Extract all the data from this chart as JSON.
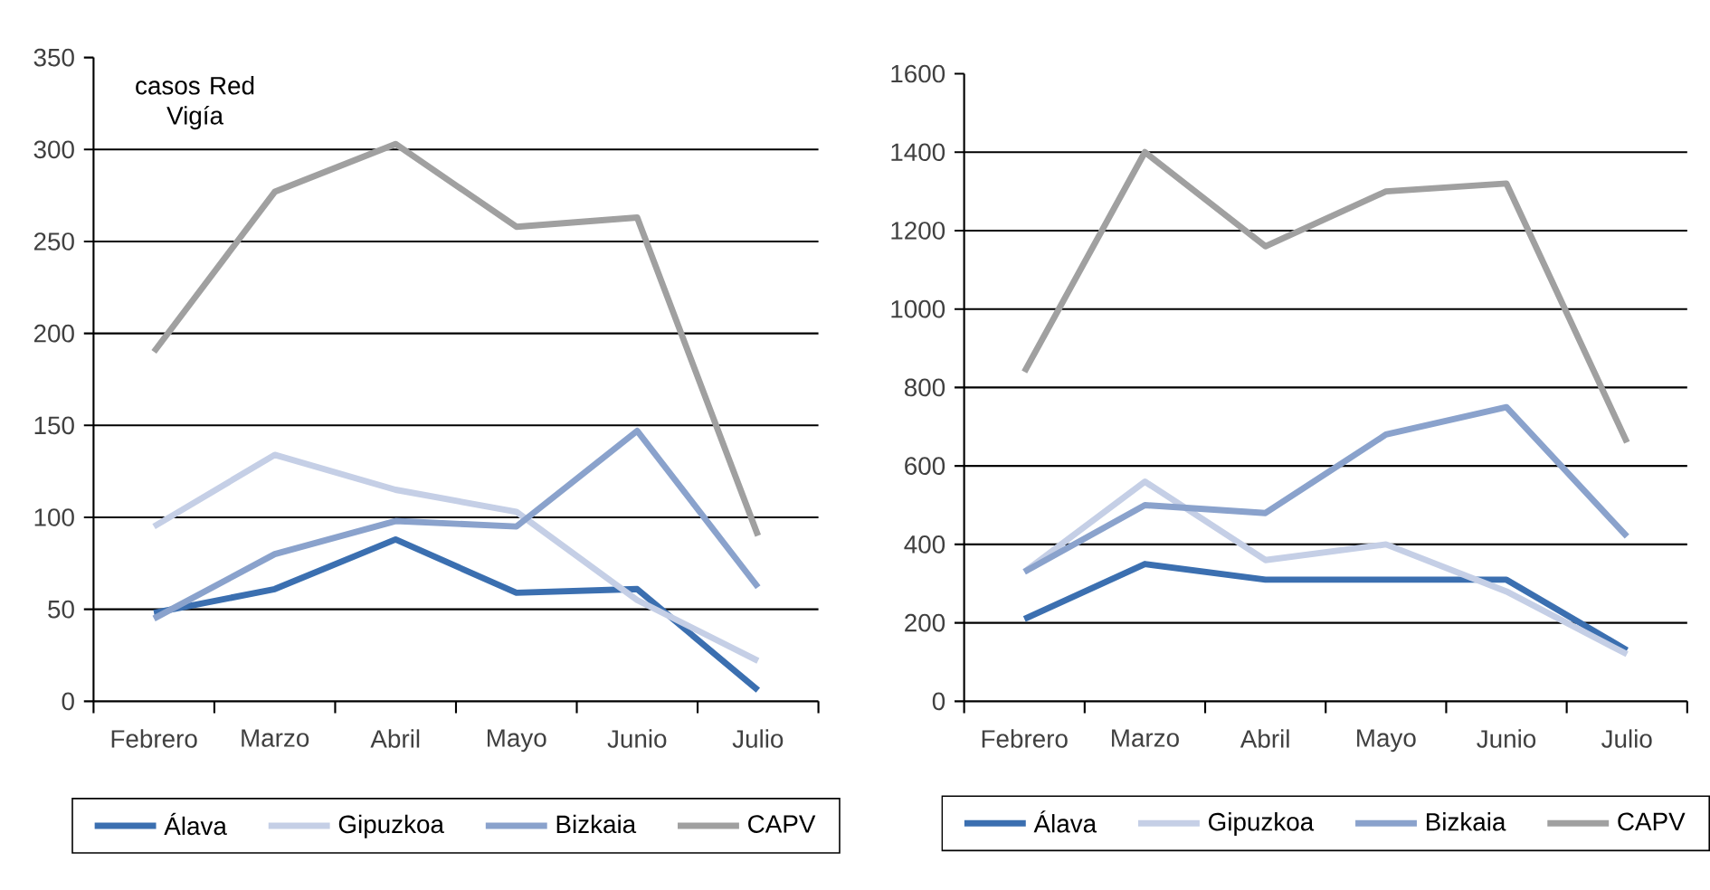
{
  "chart_data": [
    {
      "type": "line",
      "categories": [
        "Febrero",
        "Marzo",
        "Abril",
        "Mayo",
        "Junio",
        "Julio"
      ],
      "series": [
        {
          "name": "Álava",
          "color": "#3b6fb0",
          "values": [
            48,
            61,
            88,
            59,
            61,
            6
          ]
        },
        {
          "name": "Gipuzkoa",
          "color": "#c5cfe6",
          "values": [
            95,
            134,
            115,
            103,
            55,
            22
          ]
        },
        {
          "name": "Bizkaia",
          "color": "#8aa2cc",
          "values": [
            45,
            80,
            98,
            95,
            147,
            62
          ]
        },
        {
          "name": "CAPV",
          "color": "#a0a0a0",
          "values": [
            190,
            277,
            303,
            258,
            263,
            90
          ]
        }
      ],
      "ylim": [
        0,
        350
      ],
      "yticks": [
        0,
        50,
        100,
        150,
        200,
        250,
        300,
        350
      ],
      "grid": "y",
      "legend": "bottom",
      "marker": "none",
      "line_style": "solid",
      "annotations": [
        "casos Red Vigía"
      ]
    },
    {
      "type": "line",
      "categories": [
        "Febrero",
        "Marzo",
        "Abril",
        "Mayo",
        "Junio",
        "Julio"
      ],
      "series": [
        {
          "name": "Álava",
          "color": "#3b6fb0",
          "values": [
            210,
            350,
            310,
            310,
            310,
            130
          ]
        },
        {
          "name": "Gipuzkoa",
          "color": "#c5cfe6",
          "values": [
            330,
            560,
            360,
            400,
            280,
            120
          ]
        },
        {
          "name": "Bizkaia",
          "color": "#8aa2cc",
          "values": [
            330,
            500,
            480,
            680,
            750,
            420
          ]
        },
        {
          "name": "CAPV",
          "color": "#a0a0a0",
          "values": [
            840,
            1400,
            1160,
            1300,
            1320,
            660
          ]
        }
      ],
      "ylim": [
        0,
        1600
      ],
      "yticks": [
        0,
        200,
        400,
        600,
        800,
        1000,
        1200,
        1400,
        1600
      ],
      "grid": "y",
      "legend": "bottom",
      "marker": "none",
      "line_style": "solid"
    }
  ]
}
